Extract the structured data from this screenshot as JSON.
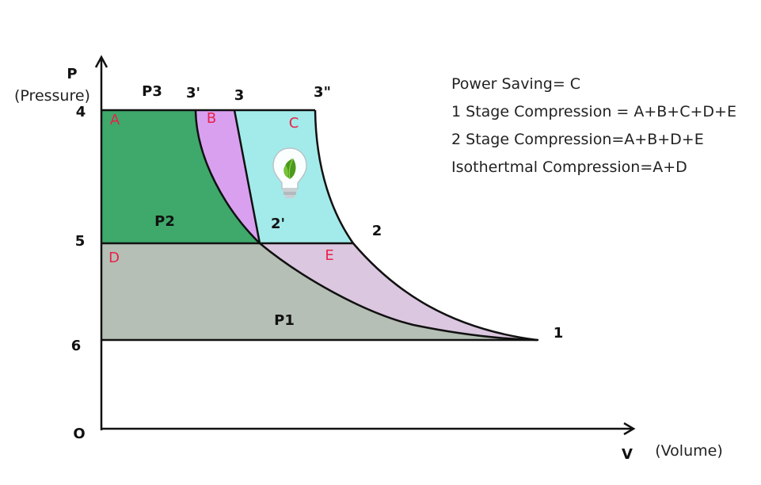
{
  "axes": {
    "y_label": "P",
    "y_sublabel": "(Pressure)",
    "x_label": "V",
    "x_sublabel": "(Volume)",
    "origin_label": "O"
  },
  "level_labels": {
    "l4": "4",
    "l5": "5",
    "l6": "6"
  },
  "pressure_labels": {
    "p1": "P1",
    "p2": "P2",
    "p3": "P3"
  },
  "point_labels": {
    "p3prime": "3'",
    "p3": "3",
    "p3dprime": "3\"",
    "p2": "2",
    "p2prime": "2'",
    "p1": "1"
  },
  "regions": {
    "a": {
      "label": "A",
      "color": "#3ea96a"
    },
    "b": {
      "label": "B",
      "color": "#d9a0f0"
    },
    "c": {
      "label": "C",
      "color": "#a3ebea"
    },
    "d": {
      "label": "D",
      "color": "#b5bfb5"
    },
    "e": {
      "label": "E",
      "color": "#dbc7df"
    }
  },
  "region_label_color": "#e8224b",
  "legend": [
    "Power Saving= C",
    "1 Stage Compression = A+B+C+D+E",
    "2 Stage Compression=A+B+D+E",
    "Isothertmal Compression=A+D"
  ],
  "icon": "lightbulb-leaf-icon"
}
